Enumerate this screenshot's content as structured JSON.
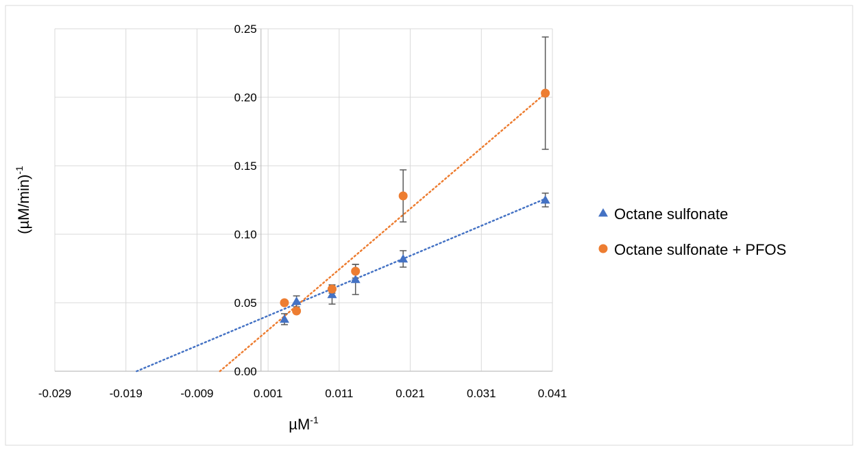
{
  "chart_data": {
    "type": "scatter",
    "title": "",
    "xlabel": "µM",
    "xlabel_sup": "-1",
    "ylabel": "(µM/min)",
    "ylabel_sup": "-1",
    "xlim": [
      -0.029,
      0.041
    ],
    "ylim": [
      0,
      0.25
    ],
    "x_ticks": [
      -0.029,
      -0.019,
      -0.009,
      0.001,
      0.011,
      0.021,
      0.031,
      0.041
    ],
    "x_tick_labels": [
      "-0.029",
      "-0.019",
      "-0.009",
      "0.001",
      "0.011",
      "0.021",
      "0.031",
      "0.041"
    ],
    "y_ticks": [
      0,
      0.05,
      0.1,
      0.15,
      0.2,
      0.25
    ],
    "y_tick_labels": [
      "0.00",
      "0.05",
      "0.10",
      "0.15",
      "0.20",
      "0.25"
    ],
    "grid": true,
    "legend_position": "right",
    "series": [
      {
        "name": "Octane sulfonate",
        "marker": "triangle",
        "color": "#4472C4",
        "x": [
          0.0033,
          0.005,
          0.01,
          0.0133,
          0.02,
          0.04
        ],
        "y": [
          0.038,
          0.051,
          0.056,
          0.067,
          0.082,
          0.125
        ],
        "y_err": [
          0.004,
          0.004,
          0.007,
          0.011,
          0.006,
          0.005
        ],
        "trendline": {
          "slope": 2.19,
          "intercept": 0.0383
        }
      },
      {
        "name": "Octane sulfonate + PFOS",
        "marker": "circle",
        "color": "#ED7D31",
        "x": [
          0.0033,
          0.005,
          0.01,
          0.0133,
          0.02,
          0.04
        ],
        "y": [
          0.05,
          0.044,
          0.06,
          0.073,
          0.128,
          0.203
        ],
        "y_err": [
          0.0,
          0.0,
          0.003,
          0.005,
          0.019,
          0.041
        ],
        "trendline": {
          "slope": 4.43,
          "intercept": 0.0256
        }
      }
    ]
  }
}
